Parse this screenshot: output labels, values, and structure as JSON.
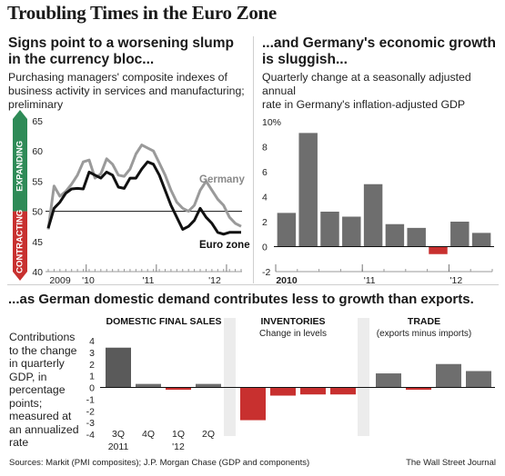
{
  "title": "Troubling Times in the Euro Zone",
  "left_panel": {
    "headline": [
      "Signs point to a worsening slump",
      "in the currency bloc..."
    ],
    "subtitle": [
      "Purchasing managers' composite indexes of",
      "business activity in services and manufacturing;",
      "preliminary"
    ]
  },
  "right_panel": {
    "headline": [
      "...and Germany's economic growth",
      "is sluggish..."
    ],
    "subtitle": [
      "Quarterly change at a seasonally adjusted annual",
      "rate in Germany's inflation-adjusted GDP"
    ]
  },
  "bottom_panel": {
    "headline": "...as German domestic demand contributes less to growth than exports.",
    "side_note": [
      "Contributions",
      "to the change",
      "in quarterly",
      "GDP, in",
      "percentage",
      "points;",
      "measured at",
      "an annualized",
      "rate"
    ]
  },
  "footer": {
    "sources": "Sources: Markit (PMI composites); J.P. Morgan Chase (GDP and components)",
    "credit": "The Wall Street Journal"
  },
  "colors": {
    "expanding": "#2e8b57",
    "contracting": "#c8302f",
    "bar_gray": "#6e6e6e",
    "bar_red": "#c8302f",
    "germany_line": "#9a9a9a",
    "eurozone_line": "#111111",
    "shade": "#ececec"
  },
  "chart_data": [
    {
      "type": "line",
      "title": "",
      "ylim": [
        40,
        65
      ],
      "y_ticks": [
        "65",
        "60",
        "55",
        "50",
        "45",
        "40"
      ],
      "x_tick_labels": [
        "2009",
        "'10",
        "'11",
        "'12"
      ],
      "reference_line": 50,
      "zone_labels": {
        "above": "EXPANDING",
        "below": "CONTRACTING"
      },
      "series": [
        {
          "name": "Germany",
          "values": [
            47.0,
            54.2,
            52.5,
            53.3,
            54.5,
            56.0,
            58.2,
            58.5,
            55.5,
            56.2,
            58.7,
            57.8,
            56.0,
            55.8,
            57.0,
            59.5,
            61.0,
            60.5,
            60.0,
            58.0,
            56.0,
            53.5,
            51.5,
            50.5,
            50.0,
            51.0,
            53.5,
            55.0,
            53.5,
            52.0,
            51.0,
            49.0,
            48.0,
            47.5
          ]
        },
        {
          "name": "Euro zone",
          "values": [
            47.2,
            50.5,
            51.5,
            53.0,
            53.7,
            53.8,
            53.7,
            56.5,
            56.0,
            55.5,
            56.5,
            56.0,
            54.0,
            53.8,
            55.5,
            55.5,
            57.0,
            58.2,
            57.8,
            56.0,
            53.5,
            51.0,
            49.0,
            47.0,
            47.5,
            48.5,
            50.5,
            49.0,
            48.0,
            46.5,
            46.2,
            46.5,
            46.5,
            46.5
          ]
        }
      ]
    },
    {
      "type": "bar",
      "title": "",
      "ylim": [
        -2,
        10
      ],
      "y_ticks": [
        "10%",
        "8",
        "6",
        "4",
        "2",
        "0",
        "-2"
      ],
      "x_tick_labels": [
        "2010",
        "'11",
        "'12"
      ],
      "values": [
        2.7,
        9.1,
        2.8,
        2.4,
        5.0,
        1.8,
        1.5,
        -0.6,
        2.0,
        1.1
      ]
    },
    {
      "type": "bar",
      "title": "",
      "ylim": [
        -4,
        4
      ],
      "y_ticks": [
        "4",
        "3",
        "2",
        "1",
        "0",
        "-1",
        "-2",
        "-3",
        "-4"
      ],
      "quarter_labels": [
        "3Q",
        "4Q",
        "1Q",
        "2Q"
      ],
      "year_labels": [
        "2011",
        "",
        "'12",
        ""
      ],
      "groups": [
        {
          "name": "DOMESTIC FINAL SALES",
          "note": "",
          "values": [
            3.4,
            0.3,
            -0.2,
            0.3
          ]
        },
        {
          "name": "INVENTORIES",
          "note": "Change in levels",
          "values": [
            -2.8,
            -0.7,
            -0.6,
            -0.6
          ]
        },
        {
          "name": "TRADE",
          "note": "(exports minus imports)",
          "values": [
            1.2,
            -0.2,
            2.0,
            1.4
          ]
        }
      ]
    }
  ]
}
